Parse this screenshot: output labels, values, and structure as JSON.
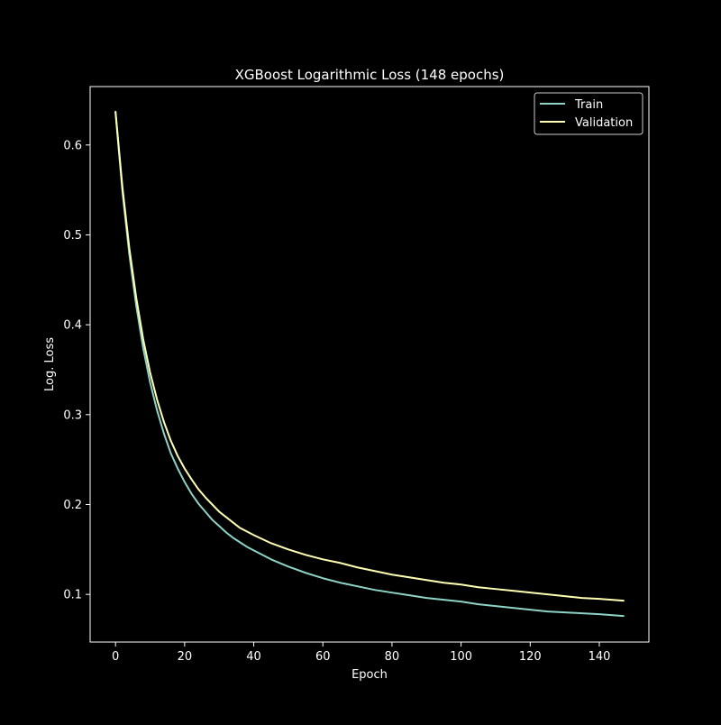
{
  "chart_data": {
    "type": "line",
    "title": "XGBoost Logarithmic Loss (148 epochs)",
    "xlabel": "Epoch",
    "ylabel": "Log. Loss",
    "xlim": [
      -7.35,
      154.35
    ],
    "ylim": [
      0.047,
      0.665
    ],
    "xticks": [
      0,
      20,
      40,
      60,
      80,
      100,
      120,
      140
    ],
    "yticks": [
      0.1,
      0.2,
      0.3,
      0.4,
      0.5,
      0.6
    ],
    "xtick_labels": [
      "0",
      "20",
      "40",
      "60",
      "80",
      "100",
      "120",
      "140"
    ],
    "ytick_labels": [
      "0.1",
      "0.2",
      "0.3",
      "0.4",
      "0.5",
      "0.6"
    ],
    "grid": false,
    "legend_position": "top-right",
    "background_color": "#000000",
    "text_color": "#ffffff",
    "series": [
      {
        "name": "Train",
        "color": "#8dd3c7",
        "x": [
          0,
          2,
          4,
          6,
          8,
          10,
          12,
          14,
          16,
          18,
          20,
          22,
          24,
          26,
          28,
          30,
          32,
          34,
          36,
          38,
          40,
          45,
          50,
          55,
          60,
          65,
          70,
          75,
          80,
          85,
          90,
          95,
          100,
          105,
          110,
          115,
          120,
          125,
          130,
          135,
          140,
          147
        ],
        "y": [
          0.636,
          0.548,
          0.478,
          0.421,
          0.374,
          0.336,
          0.305,
          0.279,
          0.257,
          0.24,
          0.225,
          0.212,
          0.201,
          0.192,
          0.183,
          0.176,
          0.169,
          0.163,
          0.158,
          0.153,
          0.149,
          0.139,
          0.131,
          0.124,
          0.118,
          0.113,
          0.109,
          0.105,
          0.102,
          0.099,
          0.096,
          0.094,
          0.092,
          0.089,
          0.087,
          0.085,
          0.083,
          0.081,
          0.08,
          0.079,
          0.078,
          0.076
        ]
      },
      {
        "name": "Validation",
        "color": "#ffffb3",
        "x": [
          0,
          2,
          4,
          6,
          8,
          10,
          12,
          14,
          16,
          18,
          20,
          22,
          24,
          26,
          28,
          30,
          32,
          34,
          36,
          38,
          40,
          45,
          50,
          55,
          60,
          65,
          70,
          75,
          80,
          85,
          90,
          95,
          100,
          105,
          110,
          115,
          120,
          125,
          130,
          135,
          140,
          147
        ],
        "y": [
          0.637,
          0.553,
          0.485,
          0.43,
          0.384,
          0.347,
          0.317,
          0.292,
          0.271,
          0.254,
          0.24,
          0.228,
          0.217,
          0.208,
          0.2,
          0.192,
          0.186,
          0.18,
          0.174,
          0.17,
          0.166,
          0.157,
          0.15,
          0.144,
          0.139,
          0.135,
          0.13,
          0.126,
          0.122,
          0.119,
          0.116,
          0.113,
          0.111,
          0.108,
          0.106,
          0.104,
          0.102,
          0.1,
          0.098,
          0.096,
          0.095,
          0.093
        ]
      }
    ]
  }
}
